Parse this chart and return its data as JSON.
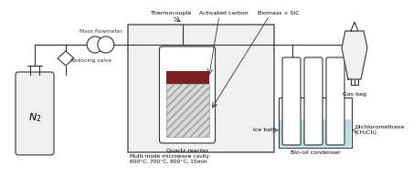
{
  "bg_color": "#ffffff",
  "line_color": "#333333",
  "labels": {
    "n2": "N₂",
    "reducing_valve": "Reducing valve",
    "mass_flowmeter": "Mass flowmeter",
    "thermocouple": "Thermocouple",
    "activated_carbon": "Activated carbon",
    "biomass_sic": "Biomass + SiC",
    "quartz_reactor": "Quartz reactor",
    "microwave": "Multi-mode microwave cavity\n600°C, 700°C, 800°C, 15min",
    "ice_bath": "Ice bath",
    "bio_oil": "Bio-oil condenser",
    "dcm": "Dichloromethane\n(CH₂Cl₂)",
    "gas_bag": "Gas bag"
  },
  "colors": {
    "light_blue": "#b8dde8",
    "brown_red": "#7a2020",
    "hatch_color": "#c0c0c0",
    "box_fill": "#f0f0f0",
    "cylinder_fill": "#f0f0f0",
    "gas_bag_fill": "#f0f0f0",
    "box_edge": "#666666"
  }
}
